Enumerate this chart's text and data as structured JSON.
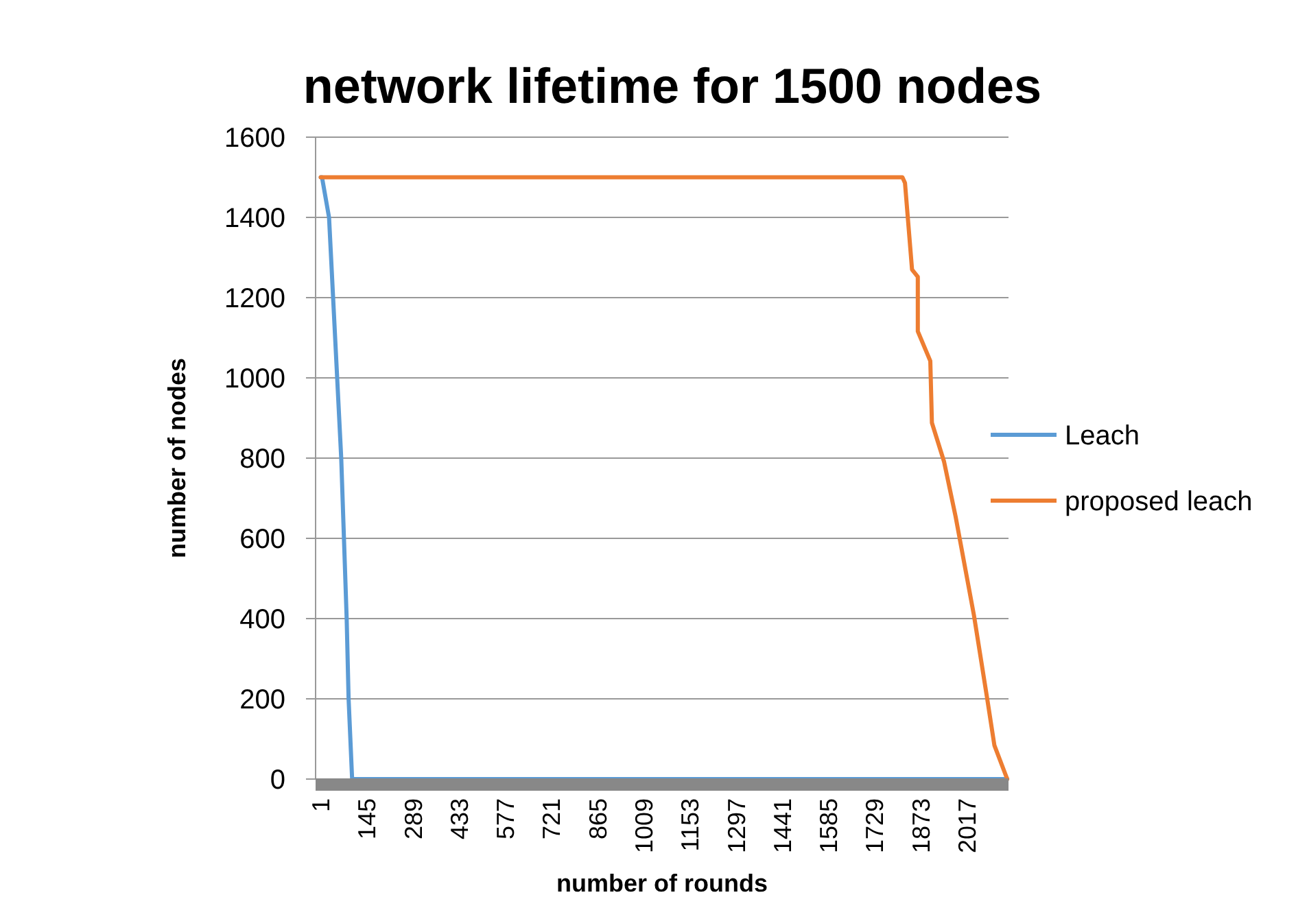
{
  "chart_data": {
    "type": "line",
    "title": "network lifetime for 1500 nodes",
    "xlabel": "number of rounds",
    "ylabel": "number of nodes",
    "xlim": [
      -15,
      2147
    ],
    "xticks": [
      1,
      145,
      289,
      433,
      577,
      721,
      865,
      1009,
      1153,
      1297,
      1441,
      1585,
      1729,
      1873,
      2017
    ],
    "ylim": [
      0,
      1600
    ],
    "yticks": [
      0,
      200,
      400,
      600,
      800,
      1000,
      1200,
      1400,
      1600
    ],
    "grid": "y",
    "legend": "right",
    "line_style": "solid",
    "marker": "none",
    "series": [
      {
        "name": "Leach",
        "color": "#5b9bd5",
        "x": [
          1,
          5,
          27,
          65,
          82,
          88,
          99,
          2143
        ],
        "values": [
          1500,
          1500,
          1400,
          800,
          400,
          200,
          0,
          0
        ]
      },
      {
        "name": "proposed leach",
        "color": "#ed7d31",
        "x": [
          1,
          1816,
          1824,
          1846,
          1864,
          1864,
          1903,
          1908,
          1946,
          1982,
          2039,
          2081,
          2103,
          2143
        ],
        "values": [
          1500,
          1500,
          1486,
          1270,
          1252,
          1116,
          1042,
          888,
          791,
          654,
          409,
          198,
          84,
          0
        ]
      }
    ]
  }
}
